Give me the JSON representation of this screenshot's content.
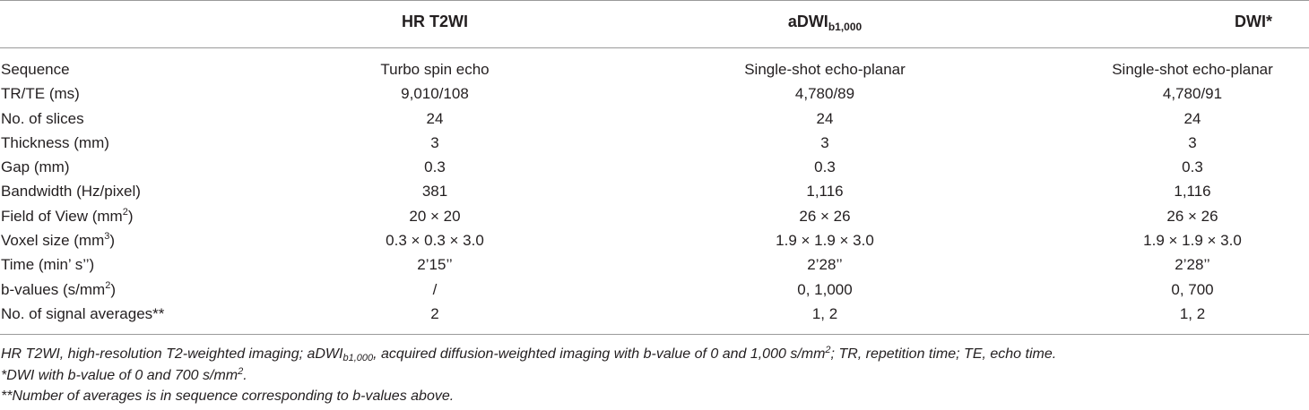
{
  "table": {
    "headers": {
      "col1": "HR T2WI",
      "col2_main": "aDWI",
      "col2_sub": "b1,000",
      "col3": "DWI*"
    },
    "rows": [
      {
        "label": "Sequence",
        "label_sup": "",
        "v1": "Turbo spin echo",
        "v2": "Single-shot echo-planar",
        "v3": "Single-shot echo-planar"
      },
      {
        "label": "TR/TE (ms)",
        "label_sup": "",
        "v1": "9,010/108",
        "v2": "4,780/89",
        "v3": "4,780/91"
      },
      {
        "label": "No. of slices",
        "label_sup": "",
        "v1": "24",
        "v2": "24",
        "v3": "24"
      },
      {
        "label": "Thickness (mm)",
        "label_sup": "",
        "v1": "3",
        "v2": "3",
        "v3": "3"
      },
      {
        "label": "Gap (mm)",
        "label_sup": "",
        "v1": "0.3",
        "v2": "0.3",
        "v3": "0.3"
      },
      {
        "label": "Bandwidth (Hz/pixel)",
        "label_sup": "",
        "v1": "381",
        "v2": "1,116",
        "v3": "1,116"
      },
      {
        "label": "Field of View (mm",
        "label_sup": "2",
        "label_after": ")",
        "v1": "20 × 20",
        "v2": "26 × 26",
        "v3": "26 × 26"
      },
      {
        "label": "Voxel size (mm",
        "label_sup": "3",
        "label_after": ")",
        "v1": "0.3 × 0.3 × 3.0",
        "v2": "1.9 × 1.9 × 3.0",
        "v3": "1.9 × 1.9 × 3.0"
      },
      {
        "label": "Time (min’ s’’)",
        "label_sup": "",
        "v1": "2’15’’",
        "v2": "2’28’’",
        "v3": "2’28’’"
      },
      {
        "label": "b-values (s/mm",
        "label_sup": "2",
        "label_after": ")",
        "v1": "/",
        "v2": "0, 1,000",
        "v3": "0, 700"
      },
      {
        "label": "No. of signal averages**",
        "label_sup": "",
        "v1": "2",
        "v2": "1, 2",
        "v3": "1, 2"
      }
    ]
  },
  "footnotes": {
    "line1_a": "HR T2WI, high-resolution T2-weighted imaging; aDWI",
    "line1_sub": "b1,000",
    "line1_b": ", acquired diffusion-weighted imaging with b-value of 0 and 1,000 s/mm",
    "line1_sup": "2",
    "line1_c": "; TR, repetition time; TE, echo time.",
    "line2_a": "*DWI with b-value of 0 and 700 s/mm",
    "line2_sup": "2",
    "line2_b": ".",
    "line3": "**Number of averages is in sequence corresponding to b-values above."
  }
}
